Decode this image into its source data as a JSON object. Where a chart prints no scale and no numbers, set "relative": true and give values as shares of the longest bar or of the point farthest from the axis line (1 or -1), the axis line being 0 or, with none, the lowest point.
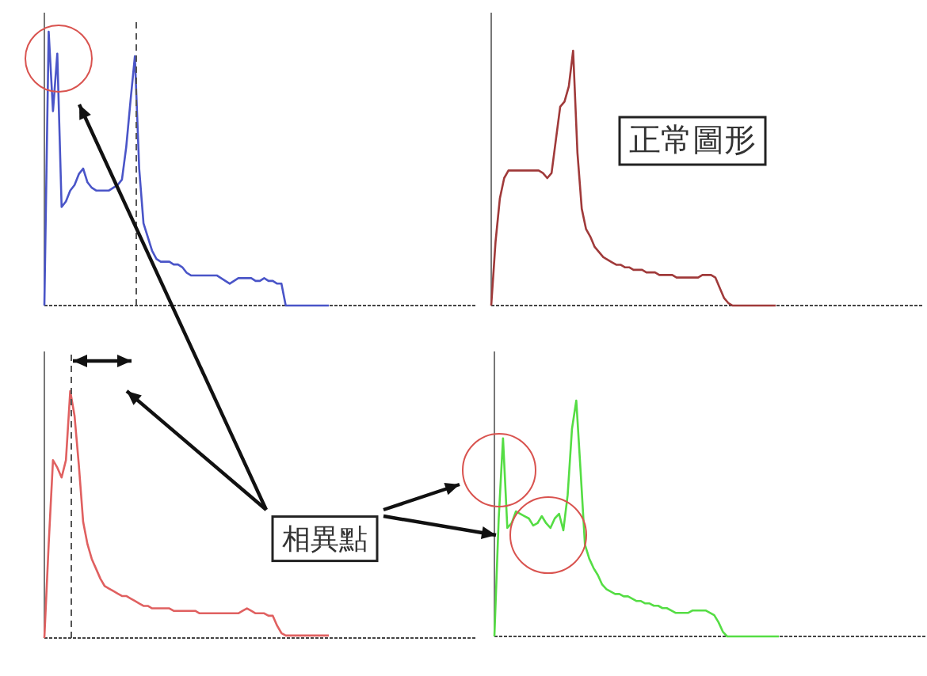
{
  "chart_data": [
    {
      "type": "line",
      "relative": true,
      "color": "#4a55c8",
      "categories": [
        null,
        null,
        null,
        null,
        null,
        null,
        null,
        null,
        null,
        null,
        null,
        null,
        null,
        null,
        null,
        null,
        null,
        null,
        null,
        null,
        null,
        null,
        null,
        null,
        null,
        null,
        null,
        null,
        null,
        null,
        null,
        null,
        null,
        null,
        null,
        null,
        null,
        null,
        null,
        null,
        null,
        null,
        null,
        null,
        null,
        null,
        null,
        null,
        null,
        null,
        null,
        null,
        null,
        null,
        null,
        null,
        null,
        null,
        null,
        null,
        null,
        null,
        null,
        null,
        null,
        null,
        null
      ],
      "values": [
        0,
        1.0,
        0.71,
        0.92,
        0.36,
        0.38,
        0.42,
        0.44,
        0.48,
        0.5,
        0.45,
        0.43,
        0.42,
        0.42,
        0.42,
        0.42,
        0.43,
        0.44,
        0.46,
        0.58,
        0.75,
        0.91,
        0.5,
        0.3,
        0.25,
        0.2,
        0.17,
        0.16,
        0.16,
        0.16,
        0.15,
        0.15,
        0.14,
        0.12,
        0.11,
        0.11,
        0.11,
        0.11,
        0.11,
        0.11,
        0.11,
        0.1,
        0.09,
        0.08,
        0.09,
        0.1,
        0.1,
        0.1,
        0.1,
        0.09,
        0.09,
        0.1,
        0.09,
        0.09,
        0.08,
        0.08,
        0,
        0,
        0,
        0,
        0,
        0,
        0,
        0,
        0,
        0,
        0
      ]
    },
    {
      "type": "line",
      "relative": true,
      "color": "#a03a3a",
      "categories": [
        null,
        null,
        null,
        null,
        null,
        null,
        null,
        null,
        null,
        null,
        null,
        null,
        null,
        null,
        null,
        null,
        null,
        null,
        null,
        null,
        null,
        null,
        null,
        null,
        null,
        null,
        null,
        null,
        null,
        null,
        null,
        null,
        null,
        null,
        null,
        null,
        null,
        null,
        null,
        null,
        null,
        null,
        null,
        null,
        null,
        null,
        null,
        null,
        null,
        null,
        null,
        null,
        null,
        null,
        null,
        null,
        null,
        null,
        null,
        null,
        null,
        null,
        null,
        null,
        null,
        null,
        null
      ],
      "values": [
        0,
        0.25,
        0.42,
        0.5,
        0.53,
        0.53,
        0.53,
        0.53,
        0.53,
        0.53,
        0.53,
        0.53,
        0.52,
        0.5,
        0.52,
        0.65,
        0.78,
        0.8,
        0.86,
        1.0,
        0.6,
        0.38,
        0.3,
        0.27,
        0.23,
        0.21,
        0.19,
        0.18,
        0.17,
        0.16,
        0.16,
        0.15,
        0.15,
        0.14,
        0.14,
        0.14,
        0.13,
        0.13,
        0.13,
        0.12,
        0.12,
        0.12,
        0.12,
        0.11,
        0.11,
        0.11,
        0.11,
        0.11,
        0.11,
        0.12,
        0.12,
        0.12,
        0.11,
        0.07,
        0.03,
        0.01,
        0,
        0,
        0,
        0,
        0,
        0,
        0,
        0,
        0,
        0,
        0
      ],
      "annotations": [
        "正常圖形"
      ]
    },
    {
      "type": "line",
      "relative": true,
      "color": "#e06060",
      "categories": [
        null,
        null,
        null,
        null,
        null,
        null,
        null,
        null,
        null,
        null,
        null,
        null,
        null,
        null,
        null,
        null,
        null,
        null,
        null,
        null,
        null,
        null,
        null,
        null,
        null,
        null,
        null,
        null,
        null,
        null,
        null,
        null,
        null,
        null,
        null,
        null,
        null,
        null,
        null,
        null,
        null,
        null,
        null,
        null,
        null,
        null,
        null,
        null,
        null,
        null,
        null,
        null,
        null,
        null,
        null,
        null,
        null,
        null,
        null,
        null,
        null,
        null,
        null,
        null,
        null,
        null,
        null
      ],
      "values": [
        0,
        0.38,
        0.72,
        0.69,
        0.65,
        0.72,
        1.0,
        0.9,
        0.7,
        0.47,
        0.38,
        0.32,
        0.28,
        0.24,
        0.21,
        0.2,
        0.19,
        0.18,
        0.17,
        0.17,
        0.16,
        0.15,
        0.14,
        0.13,
        0.13,
        0.12,
        0.12,
        0.12,
        0.12,
        0.12,
        0.11,
        0.11,
        0.11,
        0.11,
        0.11,
        0.11,
        0.1,
        0.1,
        0.1,
        0.1,
        0.1,
        0.1,
        0.1,
        0.1,
        0.1,
        0.1,
        0.11,
        0.12,
        0.11,
        0.1,
        0.1,
        0.1,
        0.09,
        0.09,
        0.05,
        0.02,
        0.01,
        0.01,
        0.01,
        0.01,
        0.01,
        0.01,
        0.01,
        0.01,
        0.01,
        0.01,
        0.01
      ],
      "annotations": [
        "相異點"
      ]
    },
    {
      "type": "line",
      "relative": true,
      "color": "#55dd44",
      "categories": [
        null,
        null,
        null,
        null,
        null,
        null,
        null,
        null,
        null,
        null,
        null,
        null,
        null,
        null,
        null,
        null,
        null,
        null,
        null,
        null,
        null,
        null,
        null,
        null,
        null,
        null,
        null,
        null,
        null,
        null,
        null,
        null,
        null,
        null,
        null,
        null,
        null,
        null,
        null,
        null,
        null,
        null,
        null,
        null,
        null,
        null,
        null,
        null,
        null,
        null,
        null,
        null,
        null,
        null,
        null,
        null,
        null,
        null,
        null,
        null,
        null,
        null,
        null,
        null,
        null,
        null,
        null
      ],
      "values": [
        0,
        0.5,
        0.84,
        0.46,
        0.48,
        0.53,
        0.52,
        0.51,
        0.5,
        0.47,
        0.48,
        0.51,
        0.48,
        0.46,
        0.5,
        0.52,
        0.45,
        0.6,
        0.88,
        1.0,
        0.7,
        0.39,
        0.33,
        0.29,
        0.26,
        0.22,
        0.2,
        0.19,
        0.18,
        0.18,
        0.17,
        0.17,
        0.16,
        0.15,
        0.15,
        0.14,
        0.14,
        0.13,
        0.13,
        0.12,
        0.12,
        0.11,
        0.1,
        0.1,
        0.1,
        0.1,
        0.11,
        0.11,
        0.11,
        0.11,
        0.1,
        0.09,
        0.06,
        0.02,
        0,
        0,
        0,
        0,
        0,
        0,
        0,
        0,
        0,
        0,
        0,
        0,
        0
      ]
    }
  ]
}
